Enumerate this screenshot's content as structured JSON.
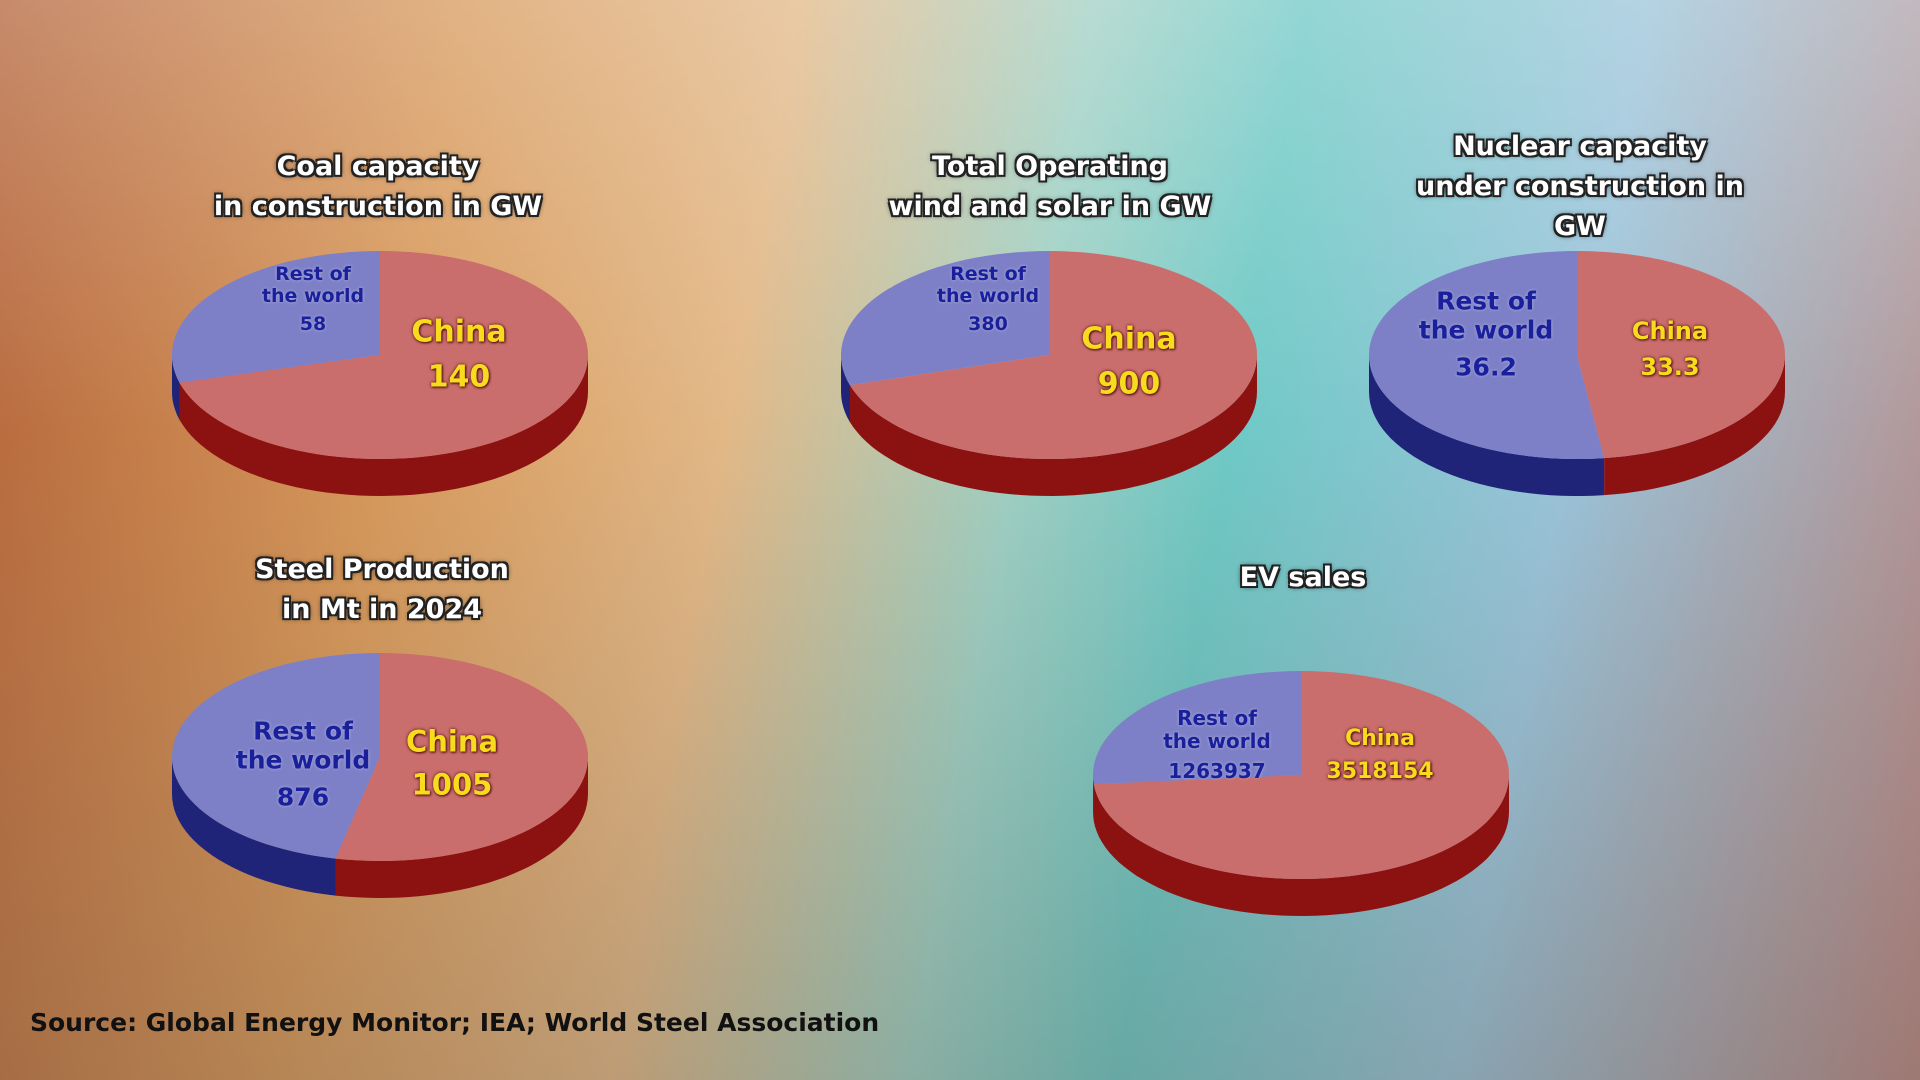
{
  "chart_data": [
    {
      "type": "pie",
      "title": "Coal capacity\nin construction in GW",
      "categories": [
        "Rest of the world",
        "China"
      ],
      "values": [
        58,
        140
      ],
      "colors": [
        "#7d80c6",
        "#c96d6d"
      ],
      "side_colors": [
        "#1f2478",
        "#8c1212"
      ]
    },
    {
      "type": "pie",
      "title": "Total Operating\nwind and solar in GW",
      "categories": [
        "Rest of the world",
        "China"
      ],
      "values": [
        380,
        900
      ],
      "colors": [
        "#7d80c6",
        "#c96d6d"
      ],
      "side_colors": [
        "#1f2478",
        "#8c1212"
      ]
    },
    {
      "type": "pie",
      "title": "Nuclear capacity\nunder construction in GW",
      "categories": [
        "Rest of the world",
        "China"
      ],
      "values": [
        36.2,
        33.3
      ],
      "colors": [
        "#7d80c6",
        "#c96d6d"
      ],
      "side_colors": [
        "#1f2478",
        "#8c1212"
      ]
    },
    {
      "type": "pie",
      "title": "Steel Production\nin Mt in 2024",
      "categories": [
        "Rest of the world",
        "China"
      ],
      "values": [
        876,
        1005
      ],
      "colors": [
        "#7d80c6",
        "#c96d6d"
      ],
      "side_colors": [
        "#1f2478",
        "#8c1212"
      ]
    },
    {
      "type": "pie",
      "title": "EV sales",
      "categories": [
        "Rest of the world",
        "China"
      ],
      "values": [
        1263937,
        3518154
      ],
      "colors": [
        "#7d80c6",
        "#c96d6d"
      ],
      "side_colors": [
        "#1f2478",
        "#8c1212"
      ]
    }
  ],
  "source": "Source: Global Energy Monitor; IEA; World Steel Association"
}
